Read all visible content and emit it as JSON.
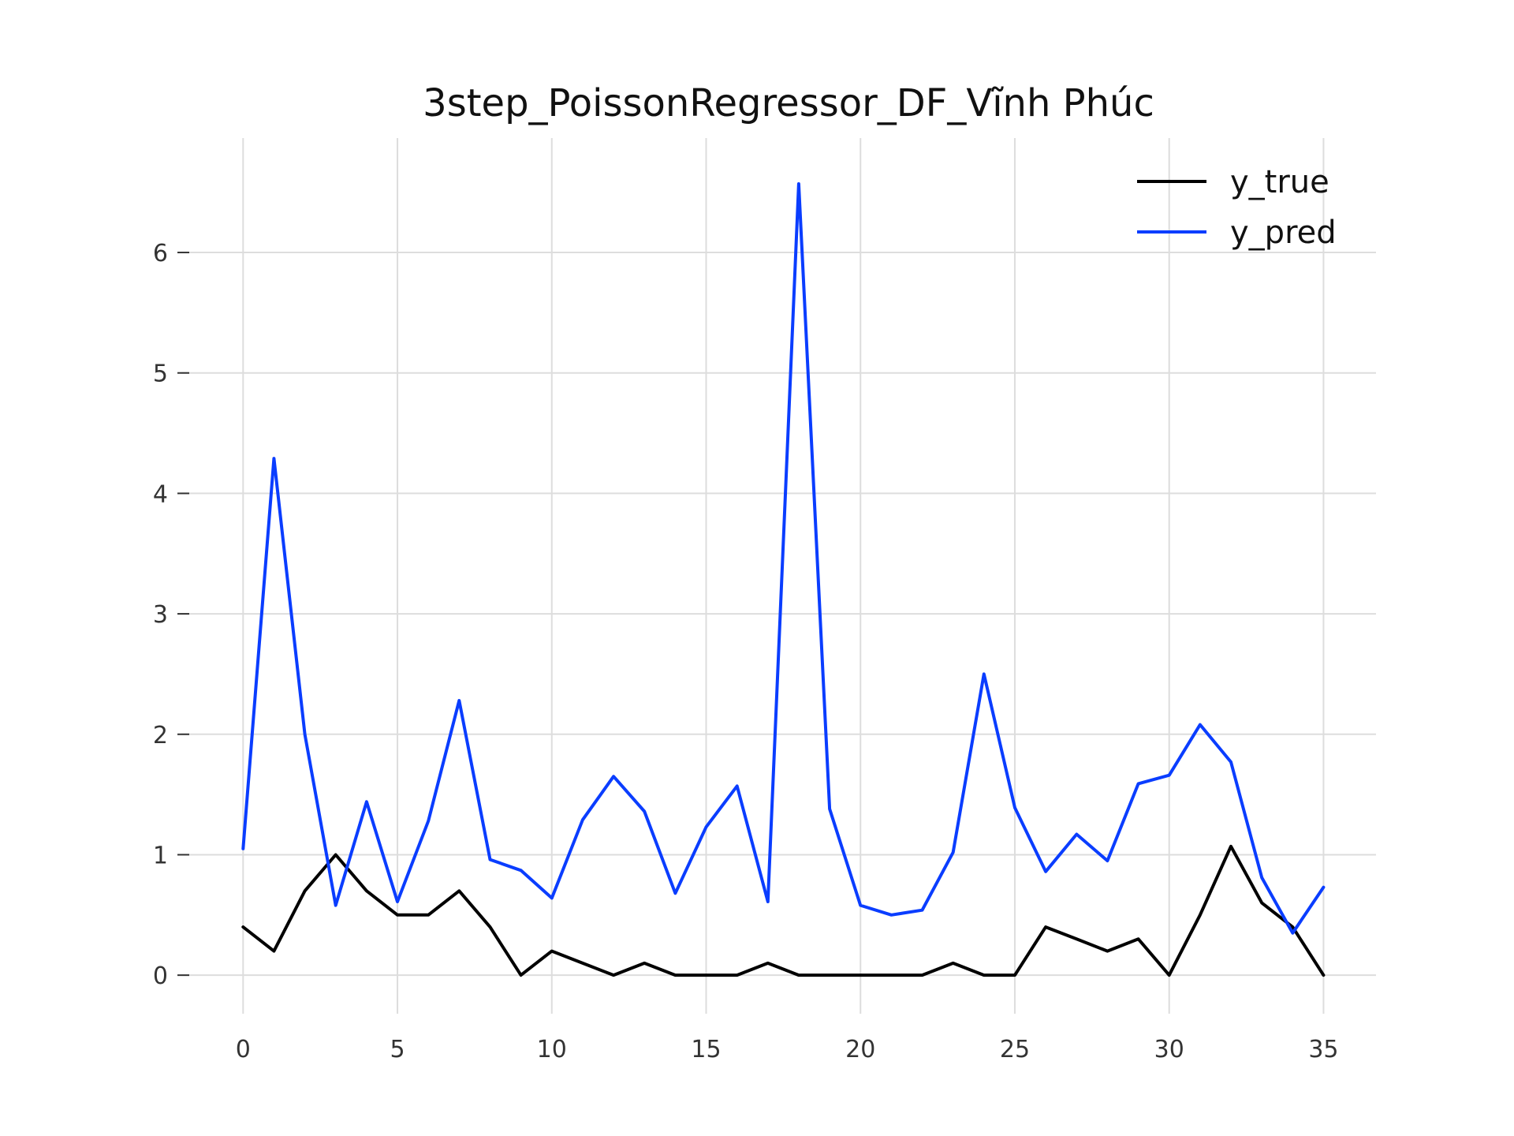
{
  "chart_data": {
    "type": "line",
    "title": "3step_PoissonRegressor_DF_Vĩnh Phúc",
    "xlabel": "",
    "ylabel": "",
    "xlim": [
      -2,
      36.7
    ],
    "ylim": [
      -0.32,
      6.95
    ],
    "xticks": [
      0,
      5,
      10,
      15,
      20,
      25,
      30,
      35
    ],
    "yticks": [
      0,
      1,
      2,
      3,
      4,
      5,
      6
    ],
    "grid": true,
    "legend_position": "top-right",
    "x": [
      0,
      1,
      2,
      3,
      4,
      5,
      6,
      7,
      8,
      9,
      10,
      11,
      12,
      13,
      14,
      15,
      16,
      17,
      18,
      19,
      20,
      21,
      22,
      23,
      24,
      25,
      26,
      27,
      28,
      29,
      30,
      31,
      32,
      33,
      34,
      35
    ],
    "series": [
      {
        "name": "y_true",
        "color": "#000000",
        "values": [
          0.4,
          0.2,
          0.7,
          1.0,
          0.7,
          0.5,
          0.5,
          0.7,
          0.4,
          0.0,
          0.2,
          0.1,
          0.0,
          0.1,
          0.0,
          0.0,
          0.0,
          0.1,
          0.0,
          0.0,
          0.0,
          0.0,
          0.0,
          0.1,
          0.0,
          0.0,
          0.4,
          0.3,
          0.2,
          0.3,
          0.0,
          0.5,
          1.07,
          0.6,
          0.4,
          0.0
        ]
      },
      {
        "name": "y_pred",
        "color": "#0a3dff",
        "values": [
          1.05,
          4.29,
          2.0,
          0.58,
          1.44,
          0.61,
          1.28,
          2.28,
          0.96,
          0.87,
          0.64,
          1.29,
          1.65,
          1.36,
          0.68,
          1.23,
          1.57,
          0.61,
          6.57,
          1.38,
          0.58,
          0.5,
          0.54,
          1.02,
          2.5,
          1.39,
          0.86,
          1.17,
          0.95,
          1.59,
          1.66,
          2.08,
          1.77,
          0.81,
          0.35,
          0.73
        ]
      }
    ]
  }
}
